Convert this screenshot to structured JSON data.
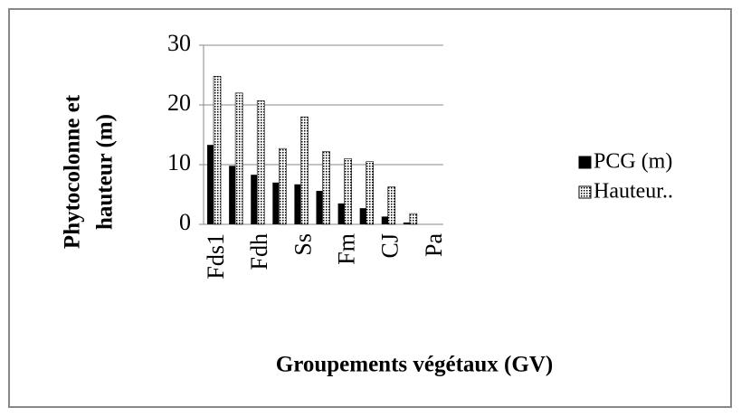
{
  "chart_data": {
    "type": "bar",
    "y_label": [
      "Phytocolonne et",
      "hauteur (m)"
    ],
    "x_label": "Groupements végétaux (GV)",
    "categories": [
      "Fds1",
      null,
      "Fdh",
      null,
      "Ss",
      null,
      "Fm",
      null,
      "CJ",
      null,
      "Pa"
    ],
    "series": [
      {
        "name": "PCG (m)",
        "color": "#000000",
        "values": [
          13.3,
          9.8,
          8.3,
          7,
          6.7,
          5.6,
          3.5,
          2.7,
          1.3,
          0.3,
          0
        ]
      },
      {
        "name": "Hauteur..",
        "color": "#000000",
        "pattern": "dots",
        "values": [
          24.8,
          22,
          20.7,
          12.7,
          18,
          12.2,
          11,
          10.5,
          6.3,
          1.8,
          0
        ]
      }
    ],
    "ylim": [
      0,
      30
    ],
    "yticks": [
      0,
      10,
      20,
      30
    ],
    "grid": true,
    "legend": "right"
  }
}
